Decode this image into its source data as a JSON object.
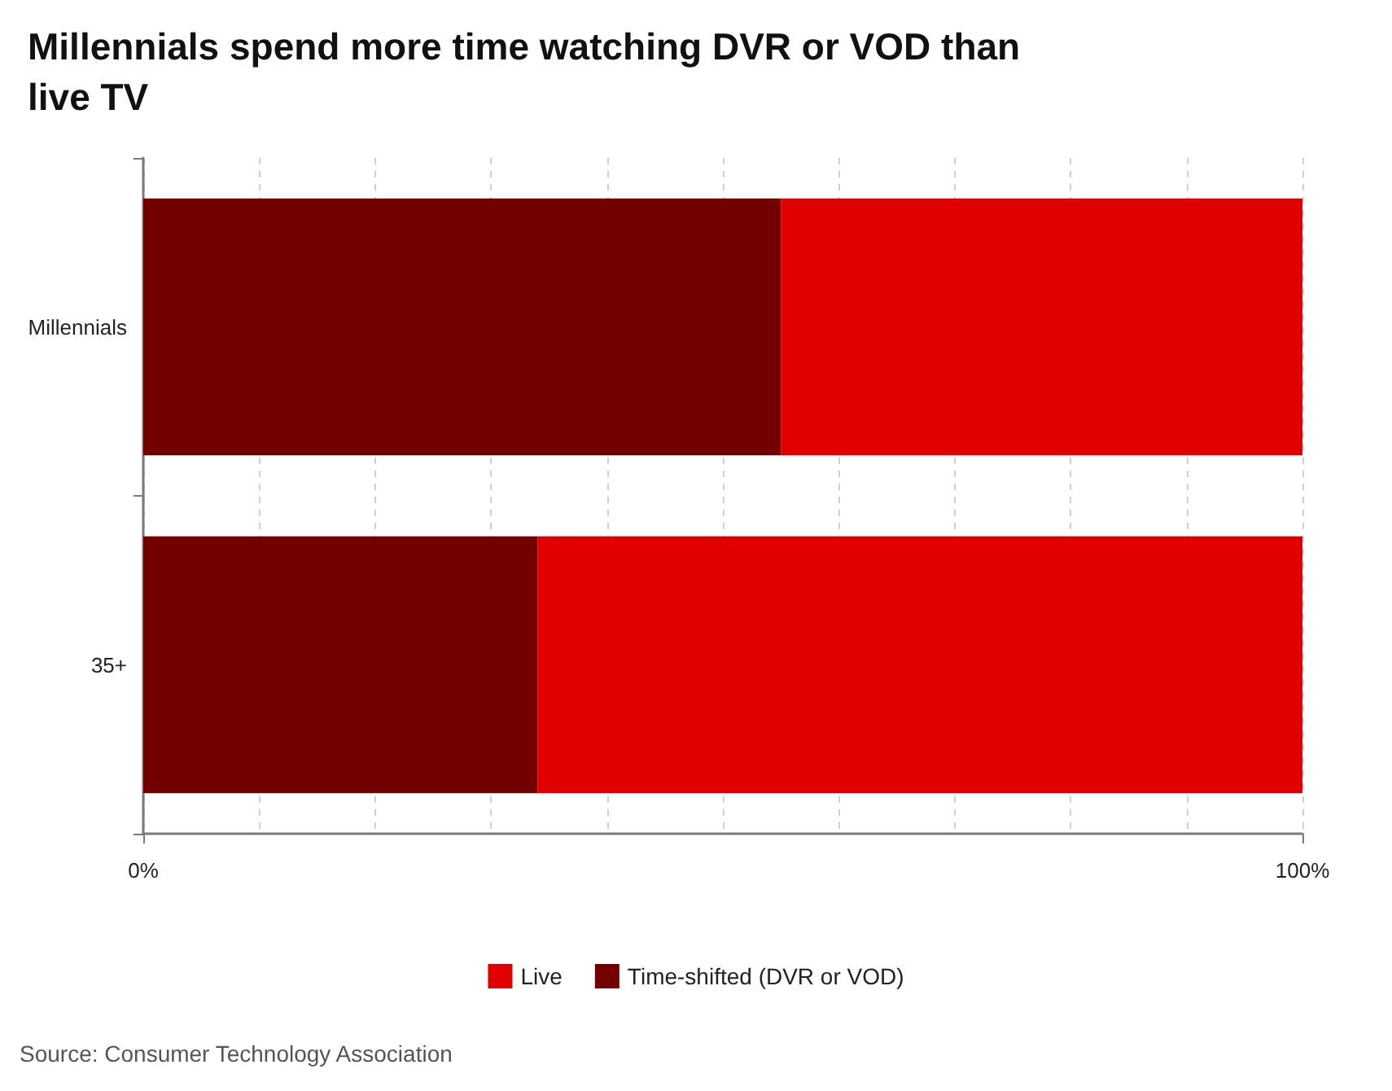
{
  "chart_data": {
    "type": "bar",
    "orientation": "horizontal",
    "stacked": true,
    "title": "Millennials spend more time watching DVR or VOD than live TV",
    "categories": [
      "Millennials",
      "35+"
    ],
    "series": [
      {
        "name": "Time-shifted (DVR or VOD)",
        "color": "#730000",
        "values": [
          55,
          34
        ]
      },
      {
        "name": "Live",
        "color": "#e00000",
        "values": [
          45,
          66
        ]
      }
    ],
    "xlim": [
      0,
      100
    ],
    "xticks": [
      {
        "value": 0,
        "label": "0%"
      },
      {
        "value": 10,
        "label": null
      },
      {
        "value": 20,
        "label": null
      },
      {
        "value": 30,
        "label": null
      },
      {
        "value": 40,
        "label": null
      },
      {
        "value": 50,
        "label": null
      },
      {
        "value": 60,
        "label": null
      },
      {
        "value": 70,
        "label": null
      },
      {
        "value": 80,
        "label": null
      },
      {
        "value": 90,
        "label": null
      },
      {
        "value": 100,
        "label": "100%"
      }
    ],
    "grid": "x",
    "legend": "bottom",
    "annotations": [
      "Source: Consumer Technology Association"
    ]
  }
}
